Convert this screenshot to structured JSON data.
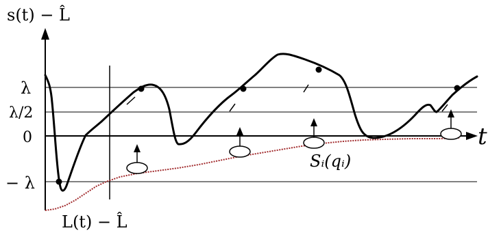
{
  "labels": {
    "y_axis": "s(t) − L̂",
    "x_axis": "t",
    "lower_curve": "L(t) − L̂",
    "bubble": "Sᵢ(qᵢ)"
  },
  "ticks": {
    "lambda": "λ",
    "half_lambda": "λ/2",
    "zero": "0",
    "neg_lambda": "− λ"
  },
  "colors": {
    "main_curve": "#000000",
    "lower_curve": "#a0282a",
    "grid": "#000000"
  }
}
